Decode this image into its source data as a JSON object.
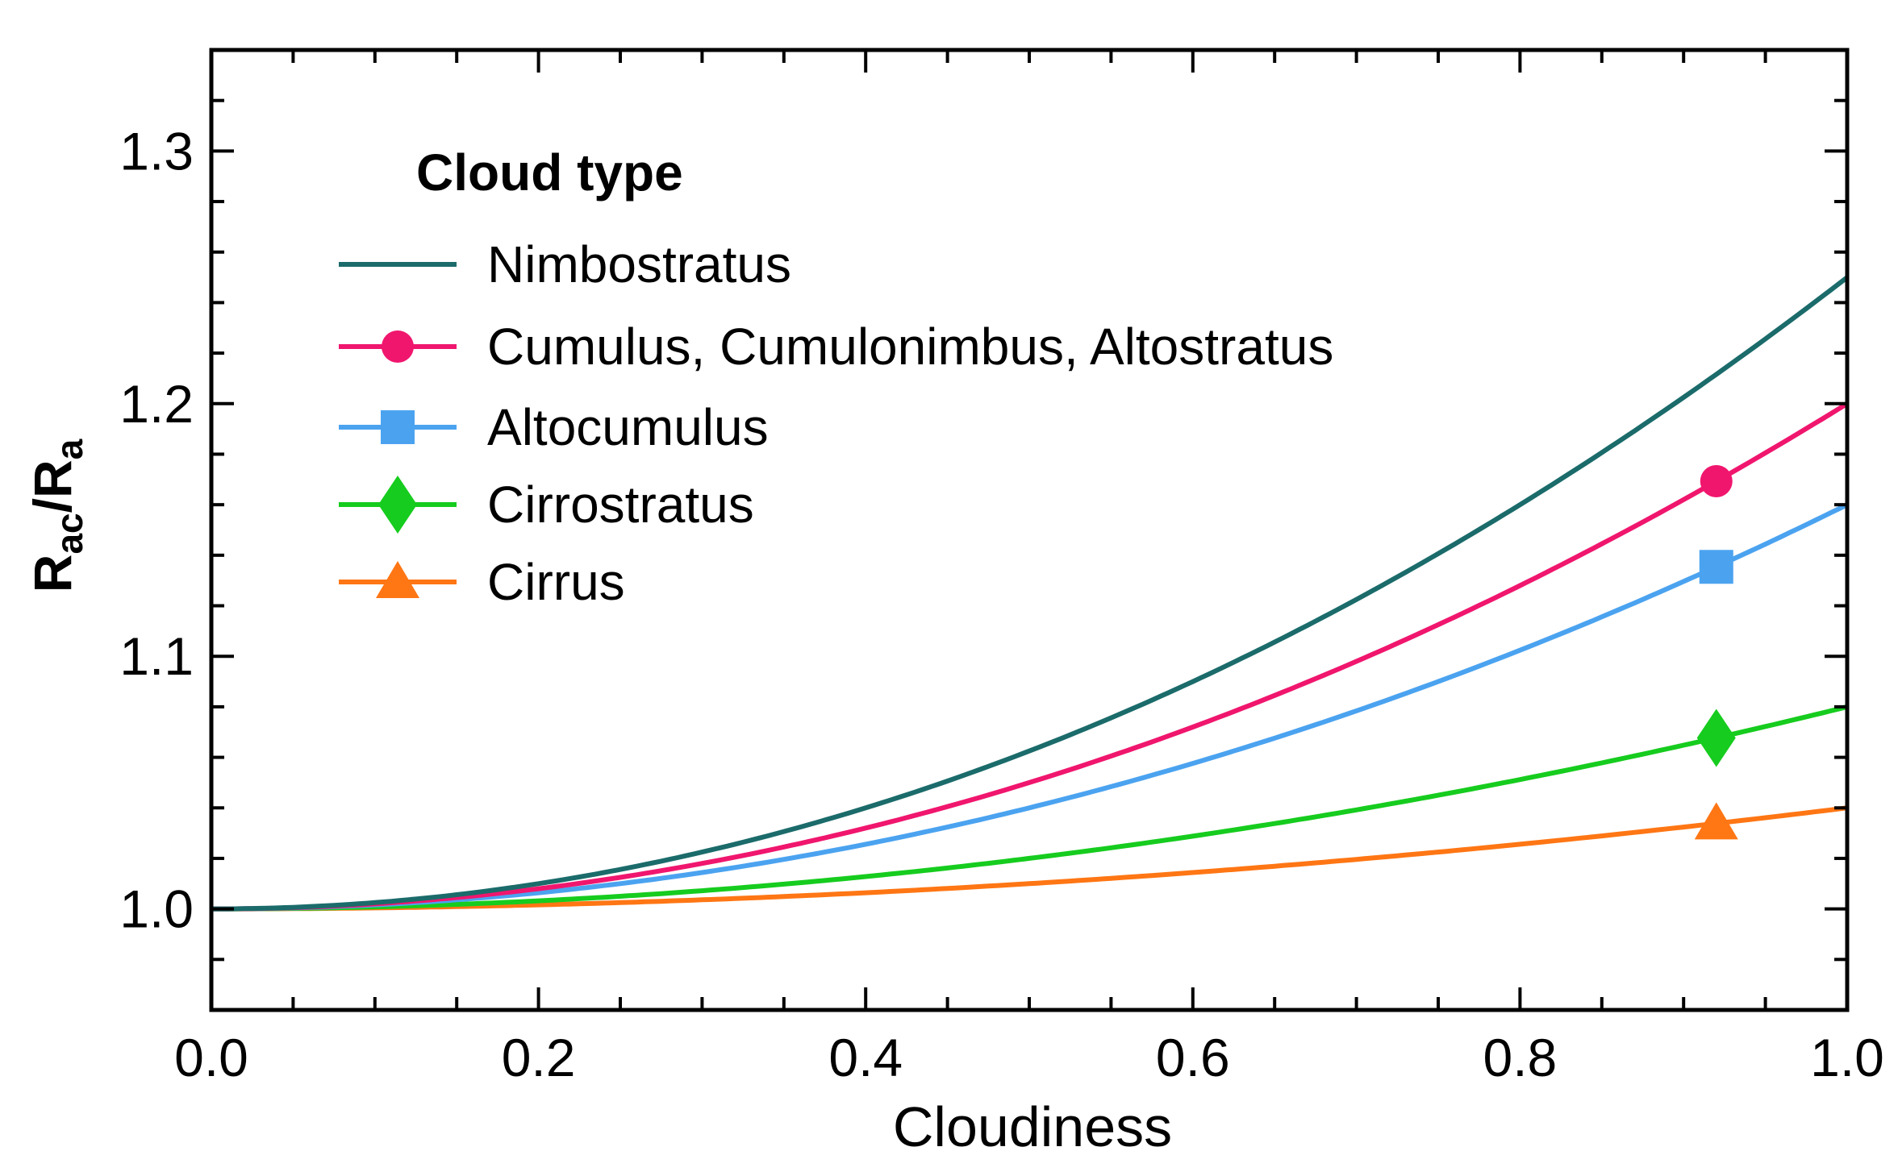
{
  "chart_data": {
    "type": "line",
    "xlabel": "Cloudiness",
    "ylabel": {
      "main1": "R",
      "sub1": "ac",
      "sep": "/",
      "main2": "R",
      "sub2": "a"
    },
    "xlim": [
      0.0,
      1.0
    ],
    "ylim": [
      0.96,
      1.34
    ],
    "xticks": [
      "0.0",
      "0.2",
      "0.4",
      "0.6",
      "0.8",
      "1.0"
    ],
    "yticks": [
      "1.0",
      "1.1",
      "1.2",
      "1.3"
    ],
    "grid": false,
    "legend": {
      "title": "Cloud type",
      "position": "top-left"
    },
    "x": [
      0.0,
      0.1,
      0.2,
      0.3,
      0.4,
      0.5,
      0.6,
      0.7,
      0.8,
      0.9,
      1.0
    ],
    "series": [
      {
        "name": "Nimbostratus",
        "color": "#1b6b6b",
        "marker": "none",
        "values": [
          1.0,
          1.0025,
          1.01,
          1.0225,
          1.04,
          1.0625,
          1.09,
          1.1225,
          1.16,
          1.2025,
          1.25
        ],
        "marker_point": null
      },
      {
        "name": "Cumulus, Cumulonimbus, Altostratus",
        "color": "#f0166e",
        "marker": "circle",
        "values": [
          1.0,
          1.002,
          1.008,
          1.018,
          1.032,
          1.05,
          1.072,
          1.098,
          1.128,
          1.162,
          1.2
        ],
        "marker_point": {
          "x": 0.92,
          "y": 1.1693
        }
      },
      {
        "name": "Altocumulus",
        "color": "#4ba3f0",
        "marker": "square",
        "values": [
          1.0,
          1.0016,
          1.0064,
          1.0144,
          1.0256,
          1.04,
          1.0576,
          1.0784,
          1.1024,
          1.1296,
          1.16
        ],
        "marker_point": {
          "x": 0.92,
          "y": 1.1354
        }
      },
      {
        "name": "Cirrostratus",
        "color": "#16cc1e",
        "marker": "diamond",
        "values": [
          1.0,
          1.0008,
          1.0032,
          1.0072,
          1.0128,
          1.02,
          1.0288,
          1.0392,
          1.0512,
          1.0648,
          1.08
        ],
        "marker_point": {
          "x": 0.92,
          "y": 1.0677
        }
      },
      {
        "name": "Cirrus",
        "color": "#ff7614",
        "marker": "triangle",
        "values": [
          1.0,
          1.0004,
          1.0016,
          1.0036,
          1.0064,
          1.01,
          1.0144,
          1.0196,
          1.0256,
          1.0324,
          1.04
        ],
        "marker_point": {
          "x": 0.92,
          "y": 1.0339
        }
      }
    ]
  }
}
